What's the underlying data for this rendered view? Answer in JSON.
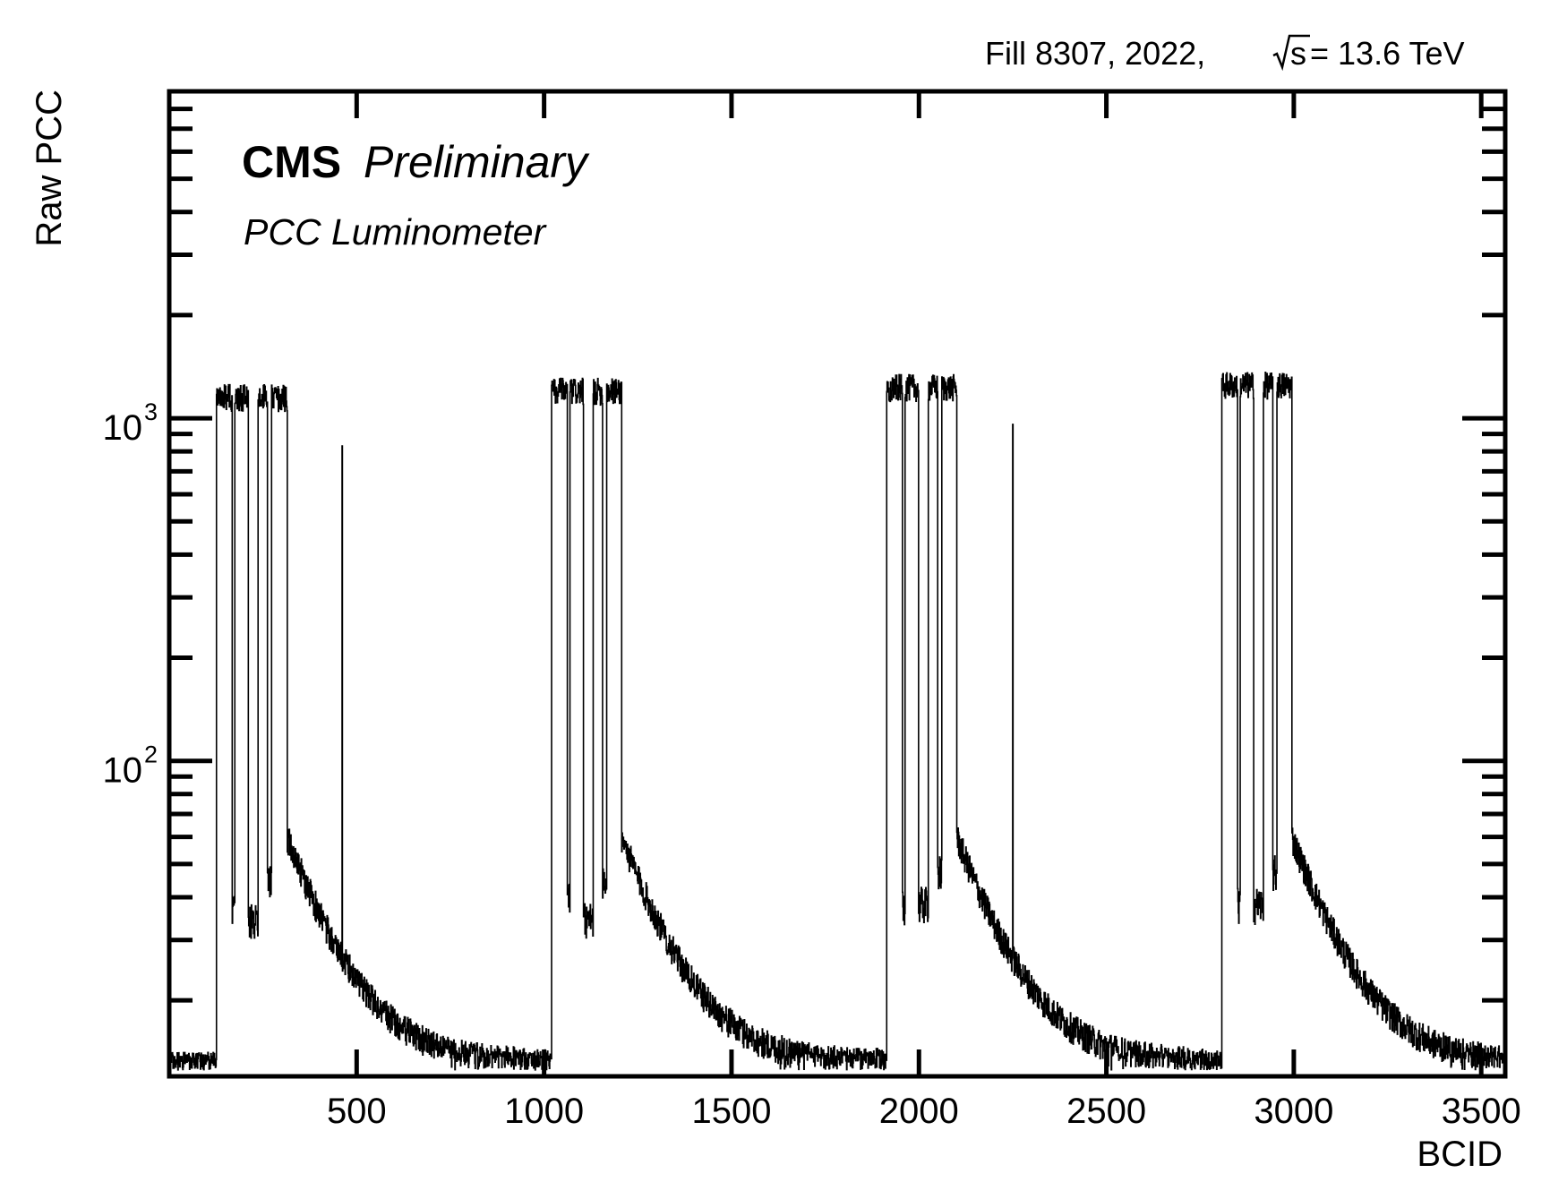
{
  "chart_data": {
    "type": "line",
    "style": "step histogram",
    "header_text": "Fill 8307,  2022,",
    "energy_prefix": "s",
    "energy_value": " = 13.6 TeV",
    "experiment": "CMS",
    "status": "Preliminary",
    "detector": "PCC Luminometer",
    "xlabel": "BCID",
    "ylabel": "Raw PCC",
    "xlim": [
      0,
      3564
    ],
    "ylim": [
      12,
      9000
    ],
    "y_scale": "log",
    "grid": false,
    "x_ticks": [
      500,
      1000,
      1500,
      2000,
      2500,
      3000,
      3500
    ],
    "x_tick_labels": [
      "500",
      "1000",
      "1500",
      "2000",
      "2500",
      "3000",
      "3500"
    ],
    "y_major_ticks": [
      100,
      1000
    ],
    "y_tick_labels": [
      {
        "base": "10",
        "exp": "2"
      },
      {
        "base": "10",
        "exp": "3"
      }
    ],
    "baseline": 13,
    "trains": [
      {
        "start": 126,
        "end": 314,
        "level": 1150,
        "gaps": [
          [
            168,
            174
          ],
          [
            211,
            236
          ],
          [
            262,
            272
          ]
        ],
        "gap_levels": [
          36,
          34,
          45
        ]
      },
      {
        "start": 1020,
        "end": 1206,
        "level": 1200,
        "gaps": [
          [
            1062,
            1068
          ],
          [
            1105,
            1130
          ],
          [
            1156,
            1166
          ]
        ],
        "gap_levels": [
          40,
          34,
          45
        ]
      },
      {
        "start": 1914,
        "end": 2100,
        "level": 1230,
        "gaps": [
          [
            1956,
            1962
          ],
          [
            1999,
            2024
          ],
          [
            2050,
            2060
          ]
        ],
        "gap_levels": [
          38,
          38,
          47
        ]
      },
      {
        "start": 2808,
        "end": 2994,
        "level": 1250,
        "gaps": [
          [
            2850,
            2856
          ],
          [
            2893,
            2918
          ],
          [
            2944,
            2954
          ]
        ],
        "gap_levels": [
          38,
          38,
          47
        ]
      }
    ],
    "afterglow": {
      "start_value": 60,
      "decay_bcids": 120
    },
    "isolated_spikes": [
      {
        "bcid": 461,
        "value": 830
      },
      {
        "bcid": 2250,
        "value": 960
      }
    ]
  }
}
